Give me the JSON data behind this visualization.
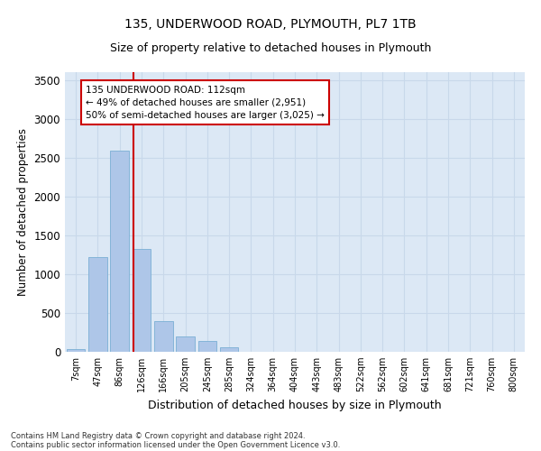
{
  "title_line1": "135, UNDERWOOD ROAD, PLYMOUTH, PL7 1TB",
  "title_line2": "Size of property relative to detached houses in Plymouth",
  "xlabel": "Distribution of detached houses by size in Plymouth",
  "ylabel": "Number of detached properties",
  "categories": [
    "7sqm",
    "47sqm",
    "86sqm",
    "126sqm",
    "166sqm",
    "205sqm",
    "245sqm",
    "285sqm",
    "324sqm",
    "364sqm",
    "404sqm",
    "443sqm",
    "483sqm",
    "522sqm",
    "562sqm",
    "602sqm",
    "641sqm",
    "681sqm",
    "721sqm",
    "760sqm",
    "800sqm"
  ],
  "values": [
    30,
    1220,
    2590,
    1320,
    395,
    200,
    145,
    55,
    5,
    5,
    0,
    0,
    5,
    0,
    0,
    0,
    0,
    0,
    0,
    0,
    0
  ],
  "bar_color": "#aec6e8",
  "bar_edge_color": "#7aafd4",
  "grid_color": "#c8d8ea",
  "background_color": "#dce8f5",
  "vline_color": "#cc0000",
  "vline_x_index": 2.63,
  "annotation_text": "135 UNDERWOOD ROAD: 112sqm\n← 49% of detached houses are smaller (2,951)\n50% of semi-detached houses are larger (3,025) →",
  "annotation_box_color": "#ffffff",
  "annotation_box_edge": "#cc0000",
  "ylim": [
    0,
    3600
  ],
  "yticks": [
    0,
    500,
    1000,
    1500,
    2000,
    2500,
    3000,
    3500
  ],
  "footnote1": "Contains HM Land Registry data © Crown copyright and database right 2024.",
  "footnote2": "Contains public sector information licensed under the Open Government Licence v3.0."
}
